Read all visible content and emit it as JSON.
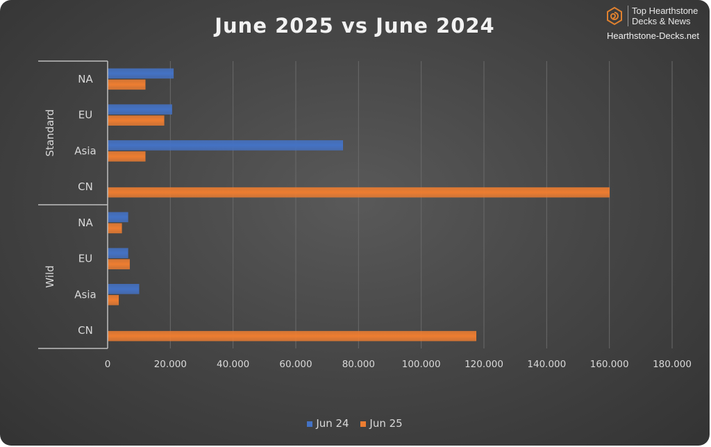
{
  "brand": {
    "line1": "Top Hearthstone",
    "line2": "Decks & News",
    "url": "Hearthstone-Decks.net",
    "icon": "hexagon-swirl-logo"
  },
  "chart_data": {
    "type": "bar",
    "orientation": "horizontal",
    "title": "June 2025 vs June 2024",
    "groups": [
      {
        "name": "Standard",
        "categories": [
          "NA",
          "EU",
          "Asia",
          "CN"
        ]
      },
      {
        "name": "Wild",
        "categories": [
          "NA",
          "EU",
          "Asia",
          "CN"
        ]
      }
    ],
    "series": [
      {
        "name": "Jun 24",
        "color": "#4472c4",
        "values": [
          21000,
          20500,
          75000,
          0,
          6500,
          6500,
          10000,
          0
        ]
      },
      {
        "name": "Jun 25",
        "color": "#ed7d31",
        "values": [
          12000,
          18000,
          12000,
          160000,
          4500,
          7000,
          3500,
          117500
        ]
      }
    ],
    "xlim": [
      0,
      180000
    ],
    "xticks": [
      0,
      20000,
      40000,
      60000,
      80000,
      100000,
      120000,
      140000,
      160000,
      180000
    ],
    "xtick_labels": [
      "0",
      "20.000",
      "40.000",
      "60.000",
      "80.000",
      "100.000",
      "120.000",
      "140.000",
      "160.000",
      "180.000"
    ],
    "grid": "vertical",
    "legend_position": "bottom"
  }
}
